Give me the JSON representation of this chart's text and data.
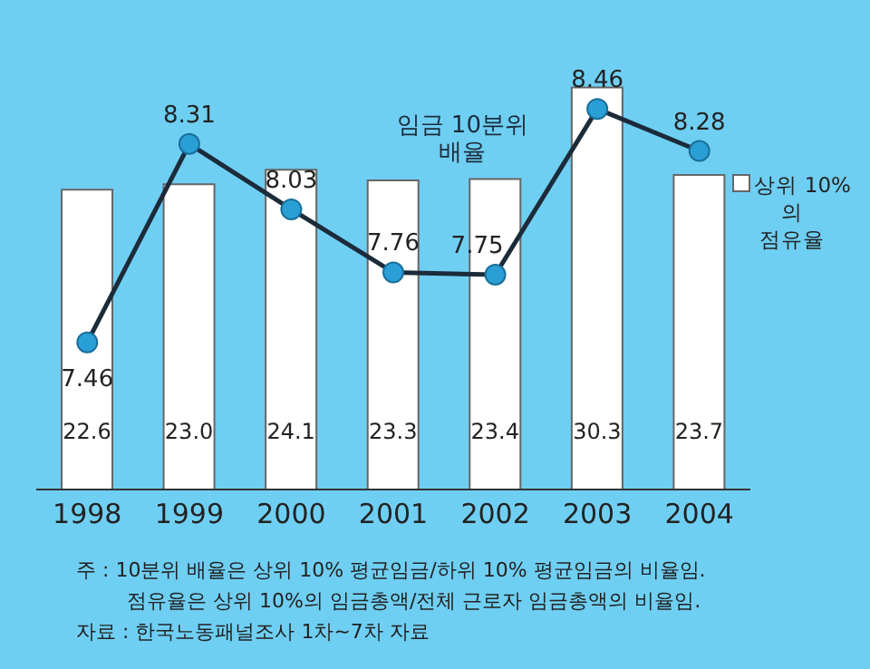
{
  "chart_data": {
    "type": "bar",
    "categories": [
      "1998",
      "1999",
      "2000",
      "2001",
      "2002",
      "2003",
      "2004"
    ],
    "series": [
      {
        "name": "상위 10%의 점유율",
        "color": "#ffffff",
        "values": [
          22.6,
          23.0,
          24.1,
          23.3,
          23.4,
          30.3,
          23.7
        ],
        "value_labels": [
          "22.6",
          "23.0",
          "24.1",
          "23.3",
          "23.4",
          "30.3",
          "23.7"
        ]
      },
      {
        "name": "임금 10분위 배율",
        "type": "line",
        "axis": "y2",
        "color": "#1c2b3a",
        "values": [
          7.46,
          8.31,
          8.03,
          7.76,
          7.75,
          8.46,
          8.28
        ],
        "value_labels": [
          "7.46",
          "8.31",
          "8.03",
          "7.76",
          "7.75",
          "8.46",
          "8.28"
        ]
      }
    ],
    "tick_labels": "x",
    "marker": "circle",
    "line_style": "solid",
    "annotations": [
      "주 : 10분위 배율은 상위 10% 평균임금/하위 10% 평균임금의 비율임.",
      "점유율은 상위 10%의 임금총액/전체 근로자 임금총액의 비율임.",
      "자료 : 한국노동패널조사 1차~7차 자료"
    ]
  }
}
